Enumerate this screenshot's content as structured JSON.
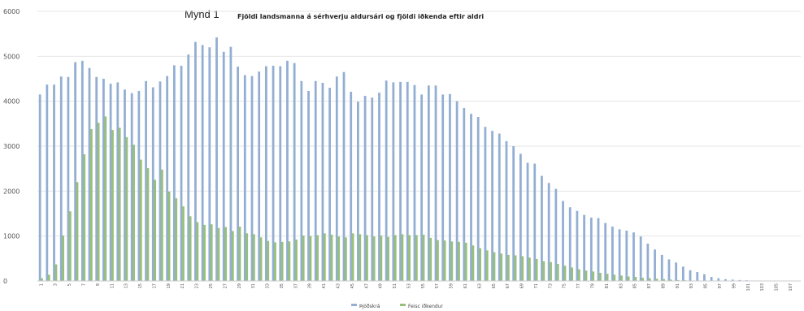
{
  "figure_label": "Mynd 1",
  "chart_data": {
    "type": "bar",
    "title": "Fjöldi landsmanna á sérhverju aldursári og fjöldi iðkenda eftir aldri",
    "xlabel": "",
    "ylabel": "",
    "ylim": [
      0,
      6000
    ],
    "yticks": [
      0,
      1000,
      2000,
      3000,
      4000,
      5000,
      6000
    ],
    "grid": true,
    "legend_position": "bottom",
    "colors": {
      "blue": "#92aed3",
      "green": "#98c07a",
      "grid": "#e6e6e6"
    },
    "categories": [
      "1",
      "2",
      "3",
      "4",
      "5",
      "6",
      "7",
      "8",
      "9",
      "10",
      "11",
      "12",
      "13",
      "14",
      "15",
      "16",
      "17",
      "18",
      "19",
      "20",
      "21",
      "22",
      "23",
      "24",
      "25",
      "26",
      "27",
      "28",
      "29",
      "30",
      "31",
      "32",
      "33",
      "34",
      "35",
      "36",
      "37",
      "38",
      "39",
      "40",
      "41",
      "42",
      "43",
      "44",
      "45",
      "46",
      "47",
      "48",
      "49",
      "50",
      "51",
      "52",
      "53",
      "54",
      "55",
      "56",
      "57",
      "58",
      "59",
      "60",
      "61",
      "62",
      "63",
      "64",
      "65",
      "66",
      "67",
      "68",
      "69",
      "70",
      "71",
      "72",
      "73",
      "74",
      "75",
      "76",
      "77",
      "78",
      "79",
      "80",
      "81",
      "82",
      "83",
      "84",
      "85",
      "86",
      "87",
      "88",
      "89",
      "90",
      "91",
      "92",
      "93",
      "94",
      "95",
      "96",
      "97",
      "98",
      "99",
      "100",
      "101",
      "102",
      "103",
      "104",
      "105",
      "106",
      "107",
      "108"
    ],
    "x_tick_labels": [
      "1",
      "3",
      "5",
      "7",
      "9",
      "11",
      "13",
      "15",
      "17",
      "19",
      "21",
      "23",
      "25",
      "27",
      "29",
      "31",
      "33",
      "35",
      "37",
      "39",
      "41",
      "43",
      "45",
      "47",
      "49",
      "51",
      "53",
      "55",
      "57",
      "59",
      "61",
      "63",
      "65",
      "67",
      "69",
      "71",
      "73",
      "75",
      "77",
      "79",
      "81",
      "83",
      "85",
      "87",
      "89",
      "91",
      "93",
      "95",
      "97",
      "99",
      "101",
      "103",
      "105",
      "107"
    ],
    "series": [
      {
        "name": "Þjóðskrá",
        "color": "#92aed3",
        "values": [
          4150,
          4370,
          4370,
          4550,
          4540,
          4870,
          4900,
          4740,
          4540,
          4500,
          4390,
          4420,
          4260,
          4180,
          4230,
          4450,
          4310,
          4440,
          4560,
          4800,
          4790,
          5040,
          5320,
          5250,
          5200,
          5420,
          5100,
          5210,
          4770,
          4580,
          4560,
          4660,
          4780,
          4790,
          4780,
          4900,
          4850,
          4450,
          4230,
          4450,
          4410,
          4300,
          4550,
          4650,
          4210,
          3990,
          4120,
          4080,
          4190,
          4460,
          4420,
          4430,
          4430,
          4360,
          4150,
          4350,
          4350,
          4150,
          4160,
          4000,
          3850,
          3720,
          3650,
          3430,
          3340,
          3280,
          3110,
          3000,
          2830,
          2630,
          2610,
          2340,
          2180,
          2050,
          1780,
          1640,
          1560,
          1470,
          1410,
          1400,
          1290,
          1210,
          1150,
          1120,
          1080,
          990,
          830,
          700,
          580,
          480,
          410,
          320,
          240,
          200,
          150,
          90,
          60,
          40,
          30,
          20,
          15,
          10,
          8,
          6,
          5,
          4,
          3,
          2
        ]
      },
      {
        "name": "Feisc iðkendur",
        "color": "#98c07a",
        "values": [
          60,
          140,
          370,
          1010,
          1550,
          2200,
          2820,
          3380,
          3520,
          3660,
          3360,
          3410,
          3200,
          3030,
          2700,
          2510,
          2250,
          2480,
          1990,
          1840,
          1660,
          1440,
          1310,
          1250,
          1260,
          1180,
          1200,
          1110,
          1210,
          1060,
          1040,
          970,
          890,
          860,
          870,
          880,
          920,
          1010,
          1000,
          1020,
          1060,
          1030,
          990,
          970,
          1060,
          1040,
          1020,
          990,
          1010,
          980,
          1020,
          1040,
          1020,
          1020,
          1030,
          960,
          910,
          900,
          880,
          870,
          850,
          790,
          730,
          680,
          640,
          610,
          580,
          570,
          550,
          520,
          490,
          440,
          420,
          380,
          340,
          300,
          260,
          230,
          210,
          180,
          160,
          140,
          120,
          100,
          90,
          70,
          60,
          50,
          40,
          30,
          20,
          15,
          10,
          8,
          6,
          5,
          4,
          3,
          2,
          1,
          1,
          0,
          0,
          0,
          0,
          0,
          0,
          0
        ]
      }
    ]
  }
}
